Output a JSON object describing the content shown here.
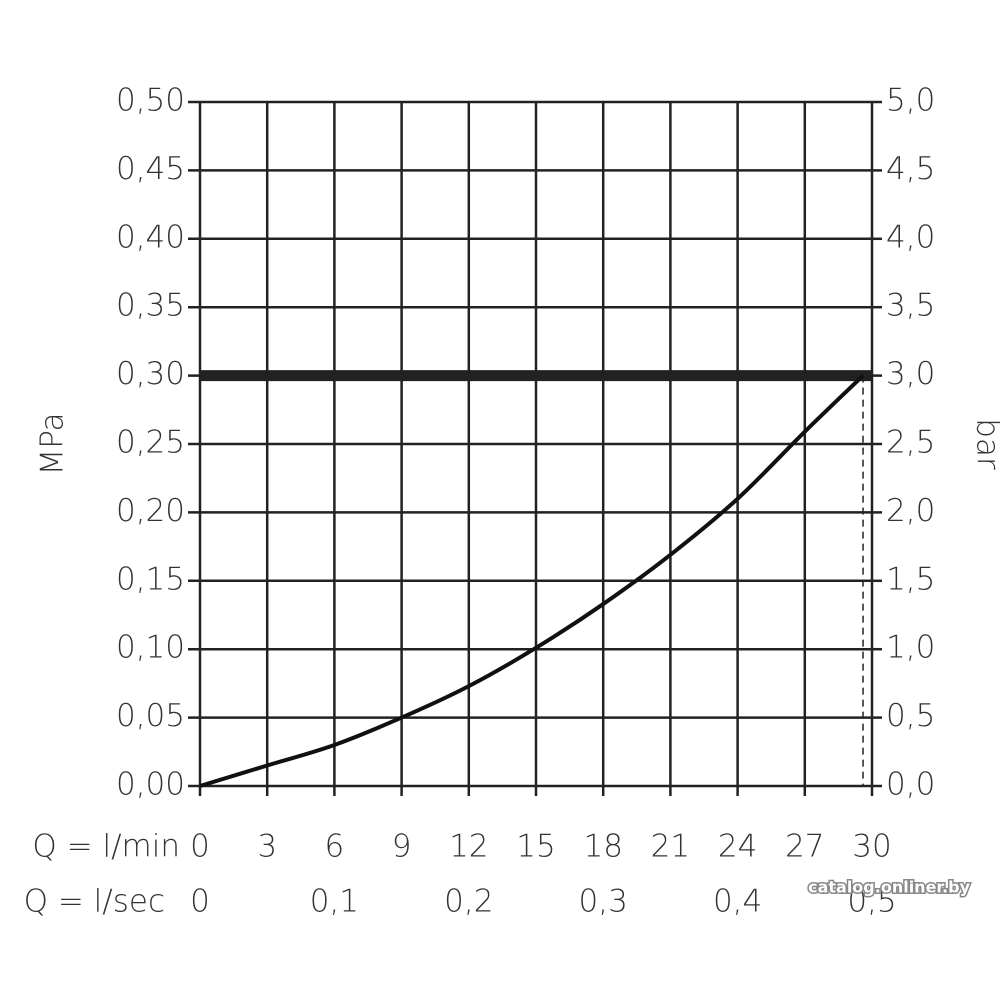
{
  "chart_data": {
    "type": "line",
    "xlabel": "Q = l/min",
    "x2label": "Q = l/sec",
    "ylabel": "MPa",
    "y2label": "bar",
    "xlim": [
      0,
      30
    ],
    "xticks": [
      0,
      3,
      6,
      9,
      12,
      15,
      18,
      21,
      24,
      27,
      30
    ],
    "x2lim": [
      0,
      0.5
    ],
    "x2ticks": [
      0,
      {
        "value": 0.1,
        "label": "0,1"
      },
      {
        "value": 0.2,
        "label": "0,2"
      },
      {
        "value": 0.3,
        "label": "0,3"
      },
      {
        "value": 0.4,
        "label": "0,4"
      },
      {
        "value": 0.5,
        "label": "0,5"
      }
    ],
    "ylim": [
      0,
      0.5
    ],
    "yticks": [
      {
        "value": 0,
        "label": "0,00"
      },
      {
        "value": 0.05,
        "label": "0,05"
      },
      {
        "value": 0.1,
        "label": "0,10"
      },
      {
        "value": 0.15,
        "label": "0,15"
      },
      {
        "value": 0.2,
        "label": "0,20"
      },
      {
        "value": 0.25,
        "label": "0,25"
      },
      {
        "value": 0.3,
        "label": "0,30"
      },
      {
        "value": 0.35,
        "label": "0,35"
      },
      {
        "value": 0.4,
        "label": "0,40"
      },
      {
        "value": 0.45,
        "label": "0,45"
      },
      {
        "value": 0.5,
        "label": "0,50"
      }
    ],
    "y2lim": [
      0,
      5
    ],
    "y2ticks": [
      {
        "value": 0,
        "label": "0,0"
      },
      {
        "value": 0.5,
        "label": "0,5"
      },
      {
        "value": 1,
        "label": "1,0"
      },
      {
        "value": 1.5,
        "label": "1,5"
      },
      {
        "value": 2,
        "label": "2,0"
      },
      {
        "value": 2.5,
        "label": "2,5"
      },
      {
        "value": 3,
        "label": "3,0"
      },
      {
        "value": 3.5,
        "label": "3,5"
      },
      {
        "value": 4,
        "label": "4,0"
      },
      {
        "value": 4.5,
        "label": "4,5"
      },
      {
        "value": 5,
        "label": "5,0"
      }
    ],
    "grid": true,
    "series": [
      {
        "color": "#111111",
        "x": [
          0,
          3,
          6,
          9,
          12,
          15,
          18,
          21,
          24,
          27,
          29.6
        ],
        "values": [
          0,
          0.015,
          0.03,
          0.05,
          0.073,
          0.101,
          0.133,
          0.169,
          0.21,
          0.259,
          0.3
        ]
      }
    ],
    "limit_line": {
      "y": 0.3,
      "color": "#222222"
    },
    "max_flow": 29.6,
    "watermark": "catalog.onliner.by"
  }
}
